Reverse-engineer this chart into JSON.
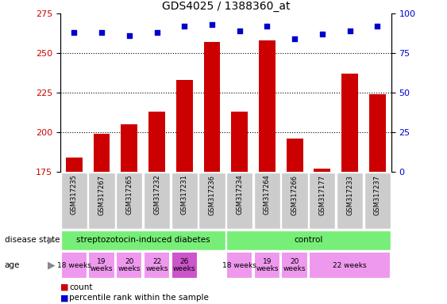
{
  "title": "GDS4025 / 1388360_at",
  "samples": [
    "GSM317235",
    "GSM317267",
    "GSM317265",
    "GSM317232",
    "GSM317231",
    "GSM317236",
    "GSM317234",
    "GSM317264",
    "GSM317266",
    "GSM317177",
    "GSM317233",
    "GSM317237"
  ],
  "counts": [
    184,
    199,
    205,
    213,
    233,
    257,
    213,
    258,
    196,
    177,
    237,
    224
  ],
  "percentiles": [
    88,
    88,
    86,
    88,
    92,
    93,
    89,
    92,
    84,
    87,
    89,
    92
  ],
  "bar_color": "#cc0000",
  "dot_color": "#0000cc",
  "ylim_left": [
    175,
    275
  ],
  "yticks_left": [
    175,
    200,
    225,
    250,
    275
  ],
  "ylim_right": [
    0,
    100
  ],
  "yticks_right": [
    0,
    25,
    50,
    75,
    100
  ],
  "grid_lines": [
    200,
    225,
    250
  ],
  "bg_color": "#ffffff",
  "xtick_bg": "#cccccc",
  "label_count": "count",
  "label_percentile": "percentile rank within the sample",
  "left_axis_color": "#cc0000",
  "right_axis_color": "#0000cc",
  "disease_row_label": "disease state",
  "age_row_label": "age",
  "ds_groups": [
    {
      "label": "streptozotocin-induced diabetes",
      "start": 0,
      "end": 6,
      "color": "#77ee77"
    },
    {
      "label": "control",
      "start": 6,
      "end": 12,
      "color": "#77ee77"
    }
  ],
  "age_groups": [
    {
      "label": "18 weeks",
      "start": 0,
      "end": 1,
      "color": "#ee99ee"
    },
    {
      "label": "19\nweeks",
      "start": 1,
      "end": 2,
      "color": "#ee99ee"
    },
    {
      "label": "20\nweeks",
      "start": 2,
      "end": 3,
      "color": "#ee99ee"
    },
    {
      "label": "22\nweeks",
      "start": 3,
      "end": 4,
      "color": "#ee99ee"
    },
    {
      "label": "26\nweeks",
      "start": 4,
      "end": 5,
      "color": "#cc55cc"
    },
    {
      "label": "18 weeks",
      "start": 6,
      "end": 7,
      "color": "#ee99ee"
    },
    {
      "label": "19\nweeks",
      "start": 7,
      "end": 8,
      "color": "#ee99ee"
    },
    {
      "label": "20\nweeks",
      "start": 8,
      "end": 9,
      "color": "#ee99ee"
    },
    {
      "label": "22 weeks",
      "start": 9,
      "end": 12,
      "color": "#ee99ee"
    }
  ]
}
